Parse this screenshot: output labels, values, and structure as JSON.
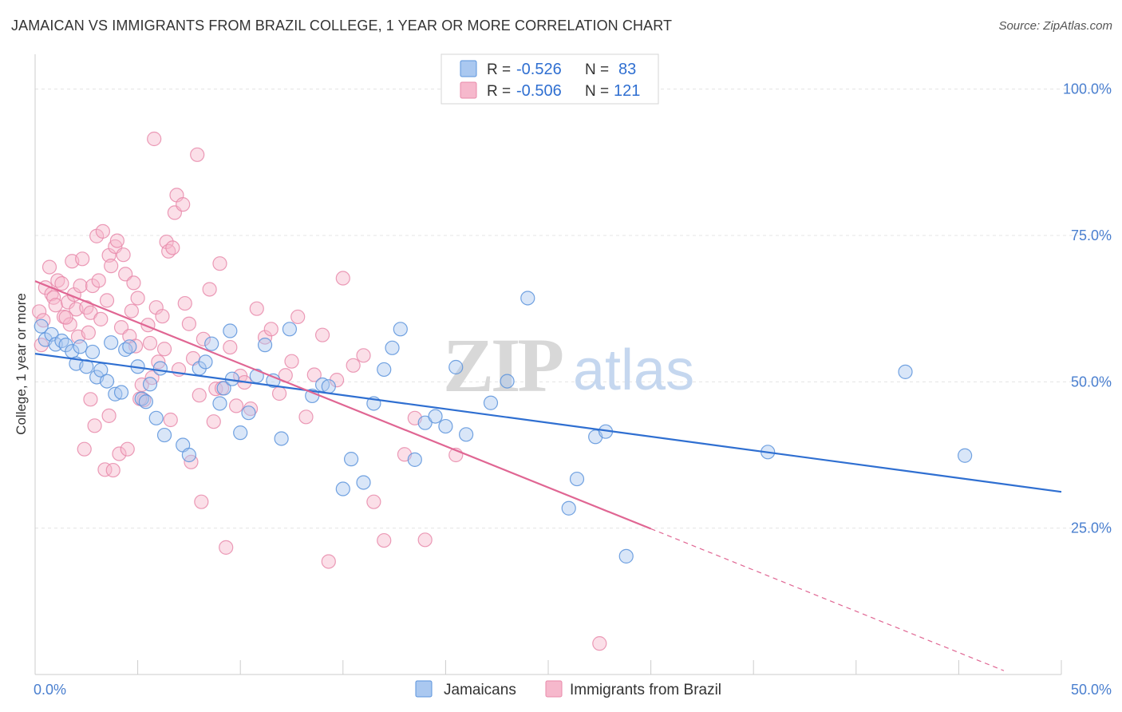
{
  "title": "JAMAICAN VS IMMIGRANTS FROM BRAZIL COLLEGE, 1 YEAR OR MORE CORRELATION CHART",
  "source": "Source: ZipAtlas.com",
  "watermark": {
    "zip": "ZIP",
    "atlas": "atlas"
  },
  "colors": {
    "blue_fill": "#aac8f0",
    "blue_stroke": "#5b93dc",
    "blue_line": "#2f6fd1",
    "pink_fill": "#f6b8cc",
    "pink_stroke": "#e88aaa",
    "pink_line": "#e06693",
    "grid": "#e4e4e4",
    "axis": "#cccccc"
  },
  "stats": [
    {
      "r_label": "R =",
      "r_value": "-0.526",
      "n_label": "N =",
      "n_value": "83"
    },
    {
      "r_label": "R =",
      "r_value": "-0.506",
      "n_label": "N =",
      "n_value": "121"
    }
  ],
  "chart_data": {
    "type": "scatter",
    "title": "JAMAICAN VS IMMIGRANTS FROM BRAZIL COLLEGE, 1 YEAR OR MORE CORRELATION CHART",
    "xlabel": "",
    "ylabel": "College, 1 year or more",
    "xlim": [
      0,
      50
    ],
    "ylim": [
      0,
      105
    ],
    "x_tick_labels": [
      "0.0%",
      "50.0%"
    ],
    "y_ticks": [
      25,
      50,
      75,
      100
    ],
    "y_tick_labels": [
      "25.0%",
      "50.0%",
      "75.0%",
      "100.0%"
    ],
    "grid": true,
    "legend_position": "bottom",
    "series": [
      {
        "name": "Jamaicans",
        "color": "blue",
        "trend": {
          "x0": 0,
          "y0": 54.8,
          "x1": 50,
          "y1": 31.2,
          "dashed_to": 50
        },
        "points": [
          [
            0.3,
            59.5
          ],
          [
            0.5,
            57.2
          ],
          [
            0.8,
            58.1
          ],
          [
            1.0,
            56.4
          ],
          [
            1.3,
            57.0
          ],
          [
            1.5,
            56.3
          ],
          [
            1.8,
            55.2
          ],
          [
            2.0,
            53.1
          ],
          [
            2.2,
            56.0
          ],
          [
            2.5,
            52.6
          ],
          [
            2.8,
            55.1
          ],
          [
            3.0,
            50.8
          ],
          [
            3.2,
            52.0
          ],
          [
            3.5,
            50.1
          ],
          [
            3.7,
            56.7
          ],
          [
            3.9,
            47.9
          ],
          [
            4.2,
            48.2
          ],
          [
            4.4,
            55.5
          ],
          [
            4.6,
            56.0
          ],
          [
            5.0,
            52.6
          ],
          [
            5.2,
            47.1
          ],
          [
            5.4,
            46.6
          ],
          [
            5.6,
            49.6
          ],
          [
            5.9,
            43.8
          ],
          [
            6.1,
            52.3
          ],
          [
            6.3,
            40.9
          ],
          [
            7.2,
            39.2
          ],
          [
            7.5,
            37.5
          ],
          [
            8.0,
            52.3
          ],
          [
            8.3,
            53.4
          ],
          [
            8.6,
            56.5
          ],
          [
            9.0,
            46.3
          ],
          [
            9.2,
            48.9
          ],
          [
            9.5,
            58.7
          ],
          [
            9.6,
            50.5
          ],
          [
            10.0,
            41.3
          ],
          [
            10.4,
            44.7
          ],
          [
            10.8,
            51.0
          ],
          [
            11.2,
            56.3
          ],
          [
            11.6,
            50.2
          ],
          [
            12.0,
            40.3
          ],
          [
            12.4,
            59.0
          ],
          [
            13.5,
            47.6
          ],
          [
            14.0,
            49.5
          ],
          [
            14.3,
            49.2
          ],
          [
            15.0,
            31.7
          ],
          [
            15.4,
            36.8
          ],
          [
            16.0,
            32.8
          ],
          [
            16.5,
            46.3
          ],
          [
            17.0,
            52.1
          ],
          [
            17.4,
            55.8
          ],
          [
            17.8,
            59.0
          ],
          [
            18.5,
            36.7
          ],
          [
            19.0,
            43.0
          ],
          [
            19.5,
            44.1
          ],
          [
            20.0,
            42.4
          ],
          [
            20.5,
            52.5
          ],
          [
            21.0,
            41.0
          ],
          [
            22.2,
            46.4
          ],
          [
            23.0,
            50.1
          ],
          [
            24.0,
            64.3
          ],
          [
            26.0,
            28.4
          ],
          [
            26.4,
            33.4
          ],
          [
            27.3,
            40.6
          ],
          [
            27.8,
            41.5
          ],
          [
            28.8,
            20.2
          ],
          [
            35.7,
            38.0
          ],
          [
            42.4,
            51.7
          ],
          [
            45.3,
            37.4
          ]
        ]
      },
      {
        "name": "Immigrants from Brazil",
        "color": "pink",
        "trend": {
          "x0": 0,
          "y0": 67.2,
          "x1": 30,
          "y1": 24.9,
          "dashed_to": 47.2
        },
        "points": [
          [
            0.2,
            62.0
          ],
          [
            0.4,
            60.5
          ],
          [
            0.5,
            66.1
          ],
          [
            0.7,
            69.6
          ],
          [
            0.8,
            65.0
          ],
          [
            0.9,
            64.4
          ],
          [
            1.0,
            63.1
          ],
          [
            1.1,
            67.3
          ],
          [
            1.3,
            66.8
          ],
          [
            1.4,
            61.1
          ],
          [
            1.6,
            63.6
          ],
          [
            1.7,
            59.8
          ],
          [
            1.8,
            70.6
          ],
          [
            1.9,
            64.9
          ],
          [
            2.0,
            62.4
          ],
          [
            2.1,
            57.7
          ],
          [
            2.2,
            66.4
          ],
          [
            2.3,
            71.0
          ],
          [
            2.5,
            62.7
          ],
          [
            2.6,
            58.4
          ],
          [
            2.7,
            61.8
          ],
          [
            2.8,
            66.4
          ],
          [
            3.0,
            74.9
          ],
          [
            3.1,
            67.3
          ],
          [
            3.2,
            60.7
          ],
          [
            3.3,
            75.7
          ],
          [
            3.5,
            63.9
          ],
          [
            3.6,
            71.6
          ],
          [
            3.7,
            69.8
          ],
          [
            3.9,
            73.1
          ],
          [
            4.0,
            74.1
          ],
          [
            4.2,
            59.3
          ],
          [
            4.3,
            71.7
          ],
          [
            4.4,
            68.4
          ],
          [
            4.6,
            57.8
          ],
          [
            4.8,
            66.9
          ],
          [
            4.9,
            56.1
          ],
          [
            5.0,
            64.3
          ],
          [
            5.2,
            49.5
          ],
          [
            5.3,
            46.9
          ],
          [
            5.5,
            59.7
          ],
          [
            5.6,
            56.6
          ],
          [
            5.8,
            91.5
          ],
          [
            5.9,
            62.7
          ],
          [
            6.0,
            53.4
          ],
          [
            6.2,
            61.2
          ],
          [
            6.3,
            55.6
          ],
          [
            6.4,
            73.9
          ],
          [
            6.5,
            72.3
          ],
          [
            6.7,
            72.9
          ],
          [
            6.8,
            78.9
          ],
          [
            6.9,
            81.9
          ],
          [
            7.0,
            52.1
          ],
          [
            7.2,
            80.3
          ],
          [
            7.3,
            63.4
          ],
          [
            7.5,
            59.9
          ],
          [
            7.7,
            54.0
          ],
          [
            7.9,
            88.8
          ],
          [
            8.0,
            47.7
          ],
          [
            8.2,
            57.3
          ],
          [
            8.5,
            65.8
          ],
          [
            8.7,
            43.2
          ],
          [
            8.8,
            48.8
          ],
          [
            9.0,
            70.2
          ],
          [
            9.3,
            21.7
          ],
          [
            9.5,
            55.9
          ],
          [
            9.8,
            45.9
          ],
          [
            10.0,
            51.0
          ],
          [
            10.2,
            49.9
          ],
          [
            10.5,
            45.4
          ],
          [
            10.8,
            62.5
          ],
          [
            11.2,
            57.6
          ],
          [
            11.5,
            59.0
          ],
          [
            11.9,
            48.0
          ],
          [
            12.2,
            51.1
          ],
          [
            12.5,
            53.5
          ],
          [
            12.8,
            61.1
          ],
          [
            13.2,
            44.0
          ],
          [
            13.6,
            51.2
          ],
          [
            14.0,
            58.0
          ],
          [
            14.3,
            19.3
          ],
          [
            14.7,
            50.3
          ],
          [
            15.0,
            67.7
          ],
          [
            15.5,
            52.8
          ],
          [
            16.0,
            54.5
          ],
          [
            16.5,
            29.5
          ],
          [
            17.0,
            22.9
          ],
          [
            18.0,
            37.6
          ],
          [
            18.5,
            43.8
          ],
          [
            19.0,
            23.0
          ],
          [
            20.5,
            37.5
          ],
          [
            27.5,
            5.3
          ],
          [
            2.4,
            38.5
          ],
          [
            3.4,
            35.0
          ],
          [
            4.1,
            37.7
          ],
          [
            4.5,
            38.5
          ],
          [
            5.1,
            47.1
          ],
          [
            6.6,
            43.5
          ],
          [
            7.6,
            36.3
          ],
          [
            8.1,
            29.5
          ],
          [
            9.1,
            48.9
          ],
          [
            2.9,
            42.5
          ],
          [
            3.8,
            34.9
          ],
          [
            5.7,
            50.7
          ],
          [
            1.5,
            61.0
          ],
          [
            0.3,
            56.3
          ],
          [
            2.7,
            47.0
          ],
          [
            3.6,
            44.2
          ],
          [
            4.7,
            62.1
          ]
        ]
      }
    ]
  },
  "legend": [
    {
      "label": "Jamaicans",
      "color": "blue"
    },
    {
      "label": "Immigrants from Brazil",
      "color": "pink"
    }
  ]
}
